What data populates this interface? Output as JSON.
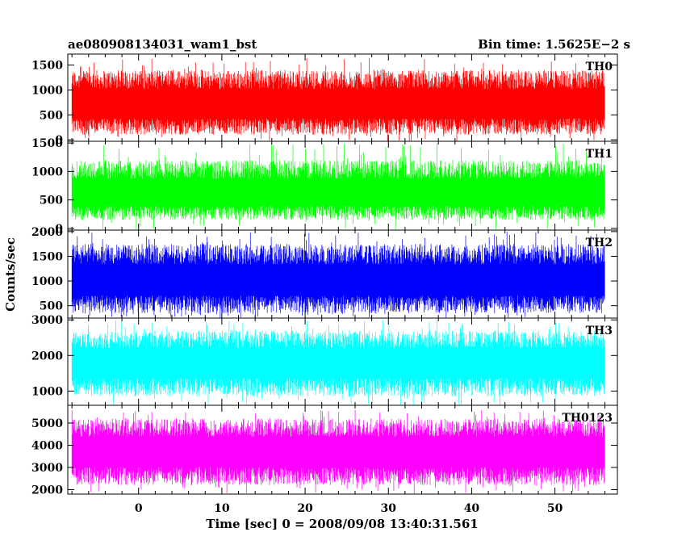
{
  "header": {
    "left": "ae080908134031_wam1_bst",
    "right": "Bin time: 1.5625E−2 s"
  },
  "chart_data": {
    "type": "line",
    "title": "ae080908134031_wam1_bst",
    "bin_time": "Bin time: 1.5625E−2 s",
    "xlabel": "Time [sec] 0 = 2008/09/08 13:40:31.561",
    "ylabel": "Counts/sec",
    "xlim": [
      -8.5,
      57.5
    ],
    "x_data_range": [
      -8,
      56
    ],
    "x_ticks": [
      0,
      10,
      20,
      30,
      40,
      50
    ],
    "x_tick_labels": [
      "0",
      "10",
      "20",
      "30",
      "40",
      "50"
    ],
    "grid": false,
    "panels": [
      {
        "name": "TH0",
        "color": "#ff0000",
        "ylim": [
          -30,
          1720
        ],
        "y_ticks": [
          0,
          500,
          1000,
          1500
        ],
        "y_tick_labels": [
          "0",
          "500",
          "1000",
          "1500"
        ],
        "mean": 700,
        "typical_min": 100,
        "typical_max": 1400,
        "peak_max": 1650
      },
      {
        "name": "TH1",
        "color": "#00ff00",
        "ylim": [
          -30,
          1530
        ],
        "y_ticks": [
          0,
          500,
          1000,
          1500
        ],
        "y_tick_labels": [
          "0",
          "500",
          "1000",
          "1500"
        ],
        "mean": 600,
        "typical_min": 150,
        "typical_max": 1200,
        "peak_max": 1500
      },
      {
        "name": "TH2",
        "color": "#0000ff",
        "ylim": [
          250,
          2030
        ],
        "y_ticks": [
          500,
          1000,
          1500,
          2000
        ],
        "y_tick_labels": [
          "500",
          "1000",
          "1500",
          "2000"
        ],
        "mean": 1000,
        "typical_min": 350,
        "typical_max": 1750,
        "peak_max": 2000
      },
      {
        "name": "TH3",
        "color": "#00ffff",
        "ylim": [
          600,
          3050
        ],
        "y_ticks": [
          1000,
          2000,
          3000
        ],
        "y_tick_labels": [
          "1000",
          "2000",
          "3000"
        ],
        "mean": 1800,
        "typical_min": 850,
        "typical_max": 2700,
        "peak_max": 3000
      },
      {
        "name": "TH0123",
        "color": "#ff00ff",
        "ylim": [
          1800,
          5800
        ],
        "y_ticks": [
          2000,
          3000,
          4000,
          5000
        ],
        "y_tick_labels": [
          "2000",
          "3000",
          "4000",
          "5000"
        ],
        "mean": 3700,
        "typical_min": 2200,
        "typical_max": 5200,
        "peak_max": 5600
      }
    ]
  }
}
